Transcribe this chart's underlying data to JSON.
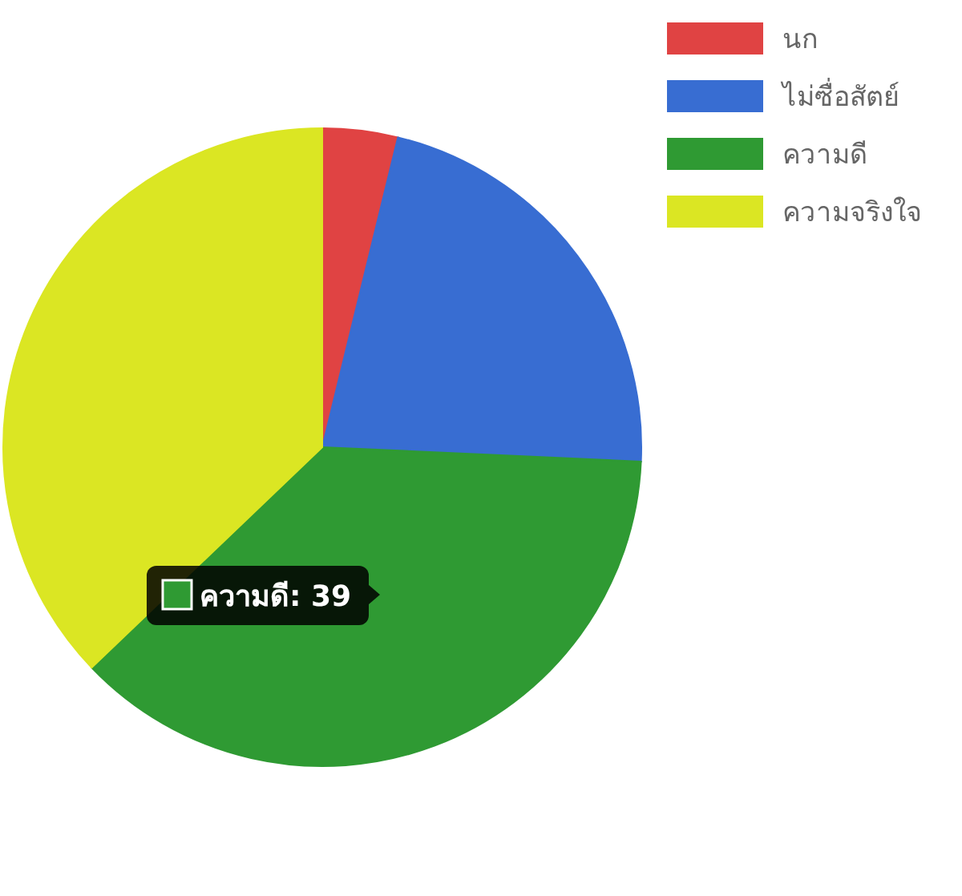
{
  "chart_data": {
    "type": "pie",
    "categories": [
      "นก",
      "ไม่ซื่อสัตย์",
      "ความดี",
      "ความจริงใจ"
    ],
    "values": [
      4,
      23,
      39,
      39
    ],
    "colors": [
      "#e04343",
      "#386dd2",
      "#2f9a33",
      "#dbe623"
    ],
    "value_labels": [
      null,
      null,
      "ความดี: 39",
      null
    ],
    "legend": "top right"
  }
}
